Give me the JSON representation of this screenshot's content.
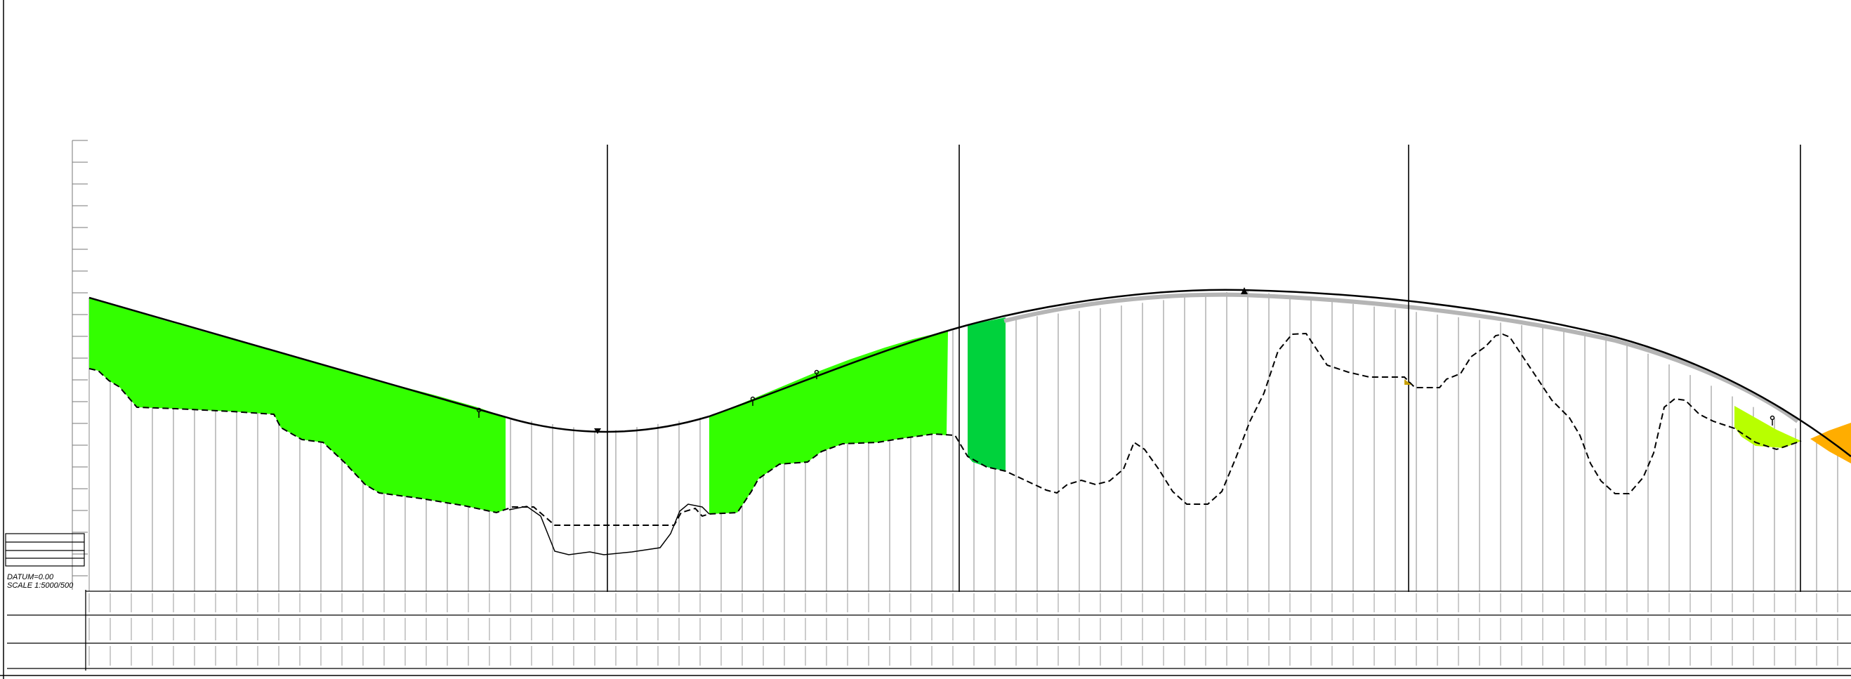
{
  "datum_label": "DATUM=0.00",
  "scale_label": "SCALE 1:5000/500",
  "colors": {
    "cut_fill": "#33ff00",
    "cut_fill_dark": "#00d23c",
    "fill_right": "#b8ff00",
    "fill_orange": "#ffad00",
    "frame": "#000000",
    "gridline": "#b0b0b0",
    "road_shadow": "#b5b5b5"
  },
  "icons": [
    "level-marker-icon",
    "vertical-curve-marker-icon"
  ]
}
